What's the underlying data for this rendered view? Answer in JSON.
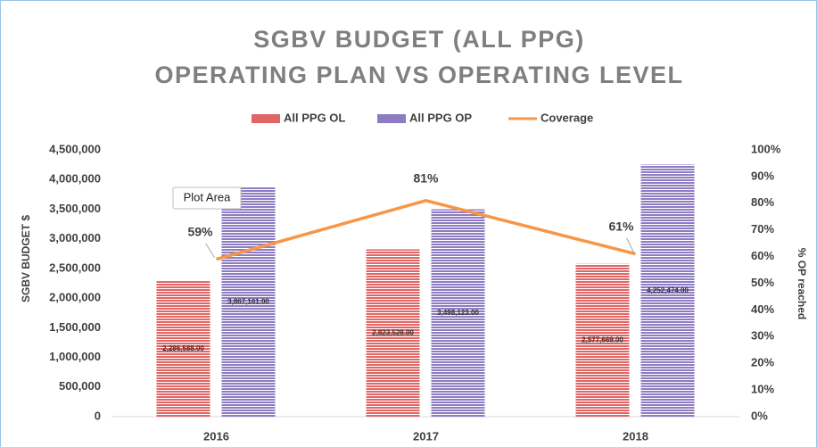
{
  "chart_data": {
    "type": "bar",
    "title": "SGBV BUDGET (ALL PPG)",
    "subtitle": "OPERATING PLAN VS OPERATING LEVEL",
    "y_label": "SGBV BUDGET $",
    "y2_label": "% OP reached",
    "tooltip": "Plot Area",
    "categories": [
      "2016",
      "2017",
      "2018"
    ],
    "series": [
      {
        "name": "All PPG OL",
        "color": "#e06666",
        "values": [
          2286588,
          2823528,
          2577669
        ],
        "value_labels": [
          "2,286,588.00",
          "2,823,528.00",
          "2,577,669.00"
        ]
      },
      {
        "name": "All PPG OP",
        "color": "#8e7cc3",
        "values": [
          3867161,
          3498123,
          4252474
        ],
        "value_labels": [
          "3,867,161.00",
          "3,498,123.00",
          "4,252,474.00"
        ]
      },
      {
        "name": "Coverage",
        "type": "line",
        "axis": "y2",
        "color": "#f79646",
        "values": [
          59,
          81,
          61
        ],
        "value_labels": [
          "59%",
          "81%",
          "61%"
        ]
      }
    ],
    "ylim": [
      0,
      4500000
    ],
    "yticks": [
      {
        "value": 0,
        "label": "0"
      },
      {
        "value": 500000,
        "label": "500,000"
      },
      {
        "value": 1000000,
        "label": "1,000,000"
      },
      {
        "value": 1500000,
        "label": "1,500,000"
      },
      {
        "value": 2000000,
        "label": "2,000,000"
      },
      {
        "value": 2500000,
        "label": "2,500,000"
      },
      {
        "value": 3000000,
        "label": "3,000,000"
      },
      {
        "value": 3500000,
        "label": "3,500,000"
      },
      {
        "value": 4000000,
        "label": "4,000,000"
      },
      {
        "value": 4500000,
        "label": "4,500,000"
      }
    ],
    "y2lim": [
      0,
      100
    ],
    "y2ticks": [
      {
        "value": 0,
        "label": "0%"
      },
      {
        "value": 10,
        "label": "10%"
      },
      {
        "value": 20,
        "label": "20%"
      },
      {
        "value": 30,
        "label": "30%"
      },
      {
        "value": 40,
        "label": "40%"
      },
      {
        "value": 50,
        "label": "50%"
      },
      {
        "value": 60,
        "label": "60%"
      },
      {
        "value": 70,
        "label": "70%"
      },
      {
        "value": 80,
        "label": "80%"
      },
      {
        "value": 90,
        "label": "90%"
      },
      {
        "value": 100,
        "label": "100%"
      }
    ],
    "grid": false
  }
}
